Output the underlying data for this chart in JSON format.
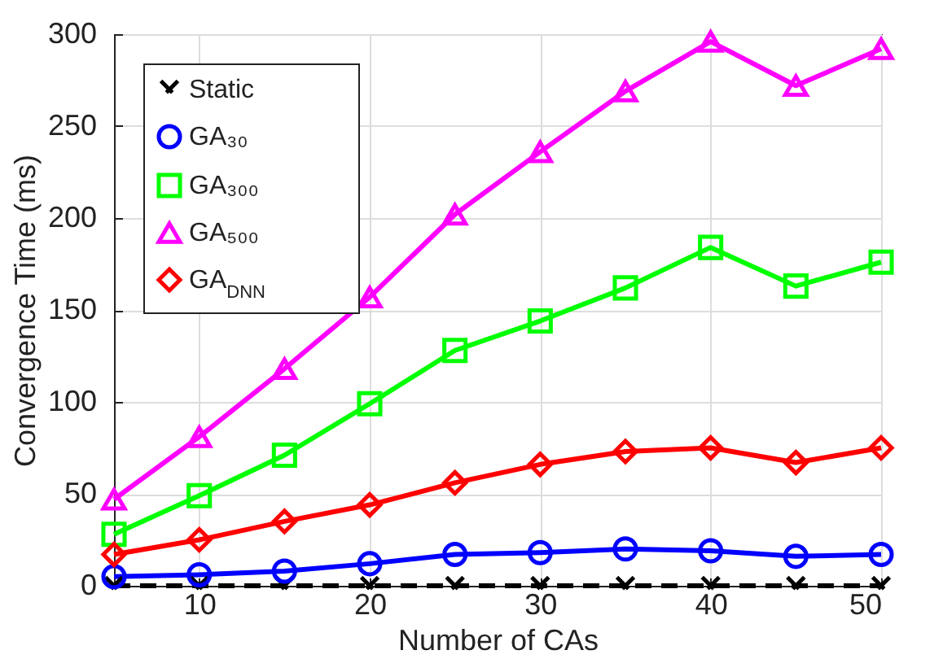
{
  "chart_data": {
    "type": "line",
    "xlabel": "Number of CAs",
    "ylabel": "Convergence Time (ms)",
    "x": [
      5,
      10,
      15,
      20,
      25,
      30,
      35,
      40,
      45,
      50
    ],
    "xlim": [
      5,
      50
    ],
    "xticks": [
      10,
      20,
      30,
      40,
      50
    ],
    "ylim": [
      0,
      300
    ],
    "yticks": [
      0,
      50,
      100,
      150,
      200,
      250,
      300
    ],
    "grid": true,
    "legend": "top left",
    "series": [
      {
        "name": "Static",
        "color": "#000000",
        "marker": "cross",
        "line_style": "dashed",
        "values": [
          0,
          0,
          0,
          0,
          0,
          0,
          0,
          0,
          0,
          0
        ]
      },
      {
        "name": "GA₃₀",
        "color": "#0000ff",
        "marker": "circle",
        "line_style": "solid",
        "values": [
          5,
          6,
          8,
          12,
          17,
          18,
          20,
          19,
          16,
          17
        ]
      },
      {
        "name": "GA₃₀₀",
        "color": "#00ff00",
        "marker": "square",
        "line_style": "solid",
        "values": [
          28,
          49,
          71,
          99,
          128,
          144,
          162,
          184,
          163,
          176
        ]
      },
      {
        "name": "GA₅₀₀",
        "color": "#ff00ff",
        "marker": "triangle",
        "line_style": "solid",
        "values": [
          47,
          81,
          118,
          157,
          202,
          236,
          269,
          296,
          272,
          292
        ]
      },
      {
        "name": "GA$_{DNN}$",
        "color": "#ff0000",
        "marker": "diamond",
        "line_style": "solid",
        "values": [
          17,
          25,
          35,
          44,
          56,
          66,
          73,
          75,
          67,
          75
        ]
      }
    ]
  }
}
